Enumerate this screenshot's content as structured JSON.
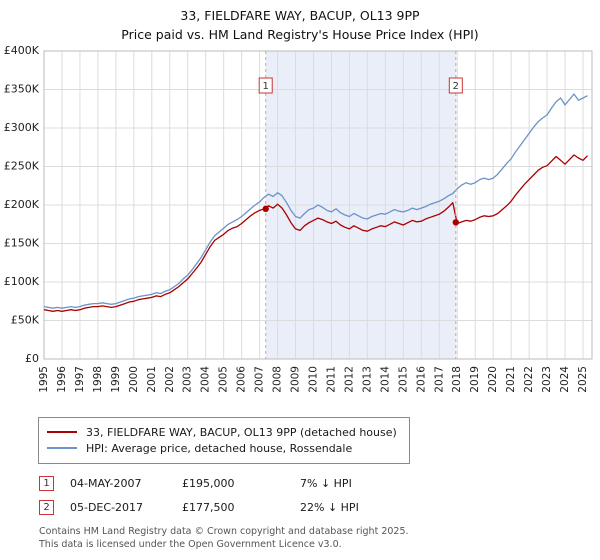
{
  "chart_data": {
    "type": "line",
    "title": "33, FIELDFARE WAY, BACUP, OL13 9PP",
    "subtitle": "Price paid vs. HM Land Registry's House Price Index (HPI)",
    "ylim": [
      0,
      400000
    ],
    "values_unit": "GBP thousands",
    "y_ticks": [
      "£0",
      "£50K",
      "£100K",
      "£150K",
      "£200K",
      "£250K",
      "£300K",
      "£350K",
      "£400K"
    ],
    "x_ticks": [
      1995,
      1996,
      1997,
      1998,
      1999,
      2000,
      2001,
      2002,
      2003,
      2004,
      2005,
      2006,
      2007,
      2008,
      2009,
      2010,
      2011,
      2012,
      2013,
      2014,
      2015,
      2016,
      2017,
      2018,
      2019,
      2020,
      2021,
      2022,
      2023,
      2024,
      2025
    ],
    "x_start": 1995,
    "x_step": 0.25,
    "grid": true,
    "legend_position": "below",
    "shaded_region": {
      "from": 2007.34,
      "to": 2017.92,
      "color": "#e9eef8"
    },
    "series": [
      {
        "name": "33, FIELDFARE WAY, BACUP, OL13 9PP (detached house)",
        "color": "#aa0000",
        "values": [
          64,
          63,
          62,
          63,
          62,
          63,
          64,
          63,
          64,
          66,
          67,
          68,
          68,
          69,
          68,
          67,
          68,
          70,
          72,
          74,
          75,
          77,
          78,
          79,
          80,
          82,
          81,
          84,
          86,
          90,
          94,
          99,
          104,
          111,
          118,
          126,
          136,
          146,
          154,
          158,
          162,
          167,
          170,
          172,
          176,
          181,
          186,
          190,
          193,
          195,
          199,
          196,
          201,
          196,
          187,
          177,
          169,
          167,
          173,
          177,
          180,
          183,
          181,
          178,
          176,
          179,
          174,
          171,
          169,
          173,
          170,
          167,
          166,
          169,
          171,
          173,
          172,
          175,
          178,
          176,
          174,
          177,
          180,
          178,
          179,
          182,
          184,
          186,
          188,
          192,
          197,
          203,
          176,
          178,
          180,
          179,
          181,
          184,
          186,
          185,
          186,
          189,
          194,
          199,
          205,
          213,
          220,
          227,
          233,
          239,
          245,
          249,
          251,
          257,
          263,
          258,
          253,
          259,
          265,
          261,
          258,
          264
        ]
      },
      {
        "name": "HPI: Average price, detached house, Rossendale",
        "color": "#6b93c9",
        "values": [
          68,
          67,
          66,
          67,
          66,
          67,
          68,
          67,
          68,
          70,
          71,
          72,
          72,
          73,
          72,
          71,
          72,
          74,
          76,
          78,
          79,
          81,
          82,
          83,
          84,
          86,
          85,
          88,
          90,
          94,
          98,
          104,
          109,
          116,
          124,
          132,
          142,
          152,
          160,
          165,
          170,
          175,
          178,
          181,
          185,
          190,
          195,
          200,
          204,
          210,
          214,
          211,
          216,
          212,
          203,
          193,
          185,
          183,
          189,
          194,
          196,
          200,
          197,
          193,
          191,
          195,
          190,
          187,
          185,
          189,
          186,
          183,
          182,
          185,
          187,
          189,
          188,
          191,
          194,
          192,
          191,
          193,
          196,
          194,
          196,
          198,
          201,
          203,
          205,
          208,
          212,
          215,
          221,
          226,
          229,
          227,
          229,
          233,
          235,
          233,
          235,
          240,
          247,
          254,
          260,
          269,
          277,
          285,
          293,
          301,
          308,
          313,
          317,
          326,
          334,
          339,
          330,
          337,
          344,
          336,
          339,
          342
        ]
      }
    ],
    "sales": [
      {
        "label": "1",
        "x": 2007.34,
        "price": 195000,
        "date": "04-MAY-2007",
        "price_label": "£195,000",
        "hpi_label": "7% ↓ HPI"
      },
      {
        "label": "2",
        "x": 2017.92,
        "price": 177500,
        "date": "05-DEC-2017",
        "price_label": "£177,500",
        "hpi_label": "22% ↓ HPI"
      }
    ]
  },
  "footer": {
    "line1": "Contains HM Land Registry data © Crown copyright and database right 2025.",
    "line2": "This data is licensed under the Open Government Licence v3.0."
  }
}
